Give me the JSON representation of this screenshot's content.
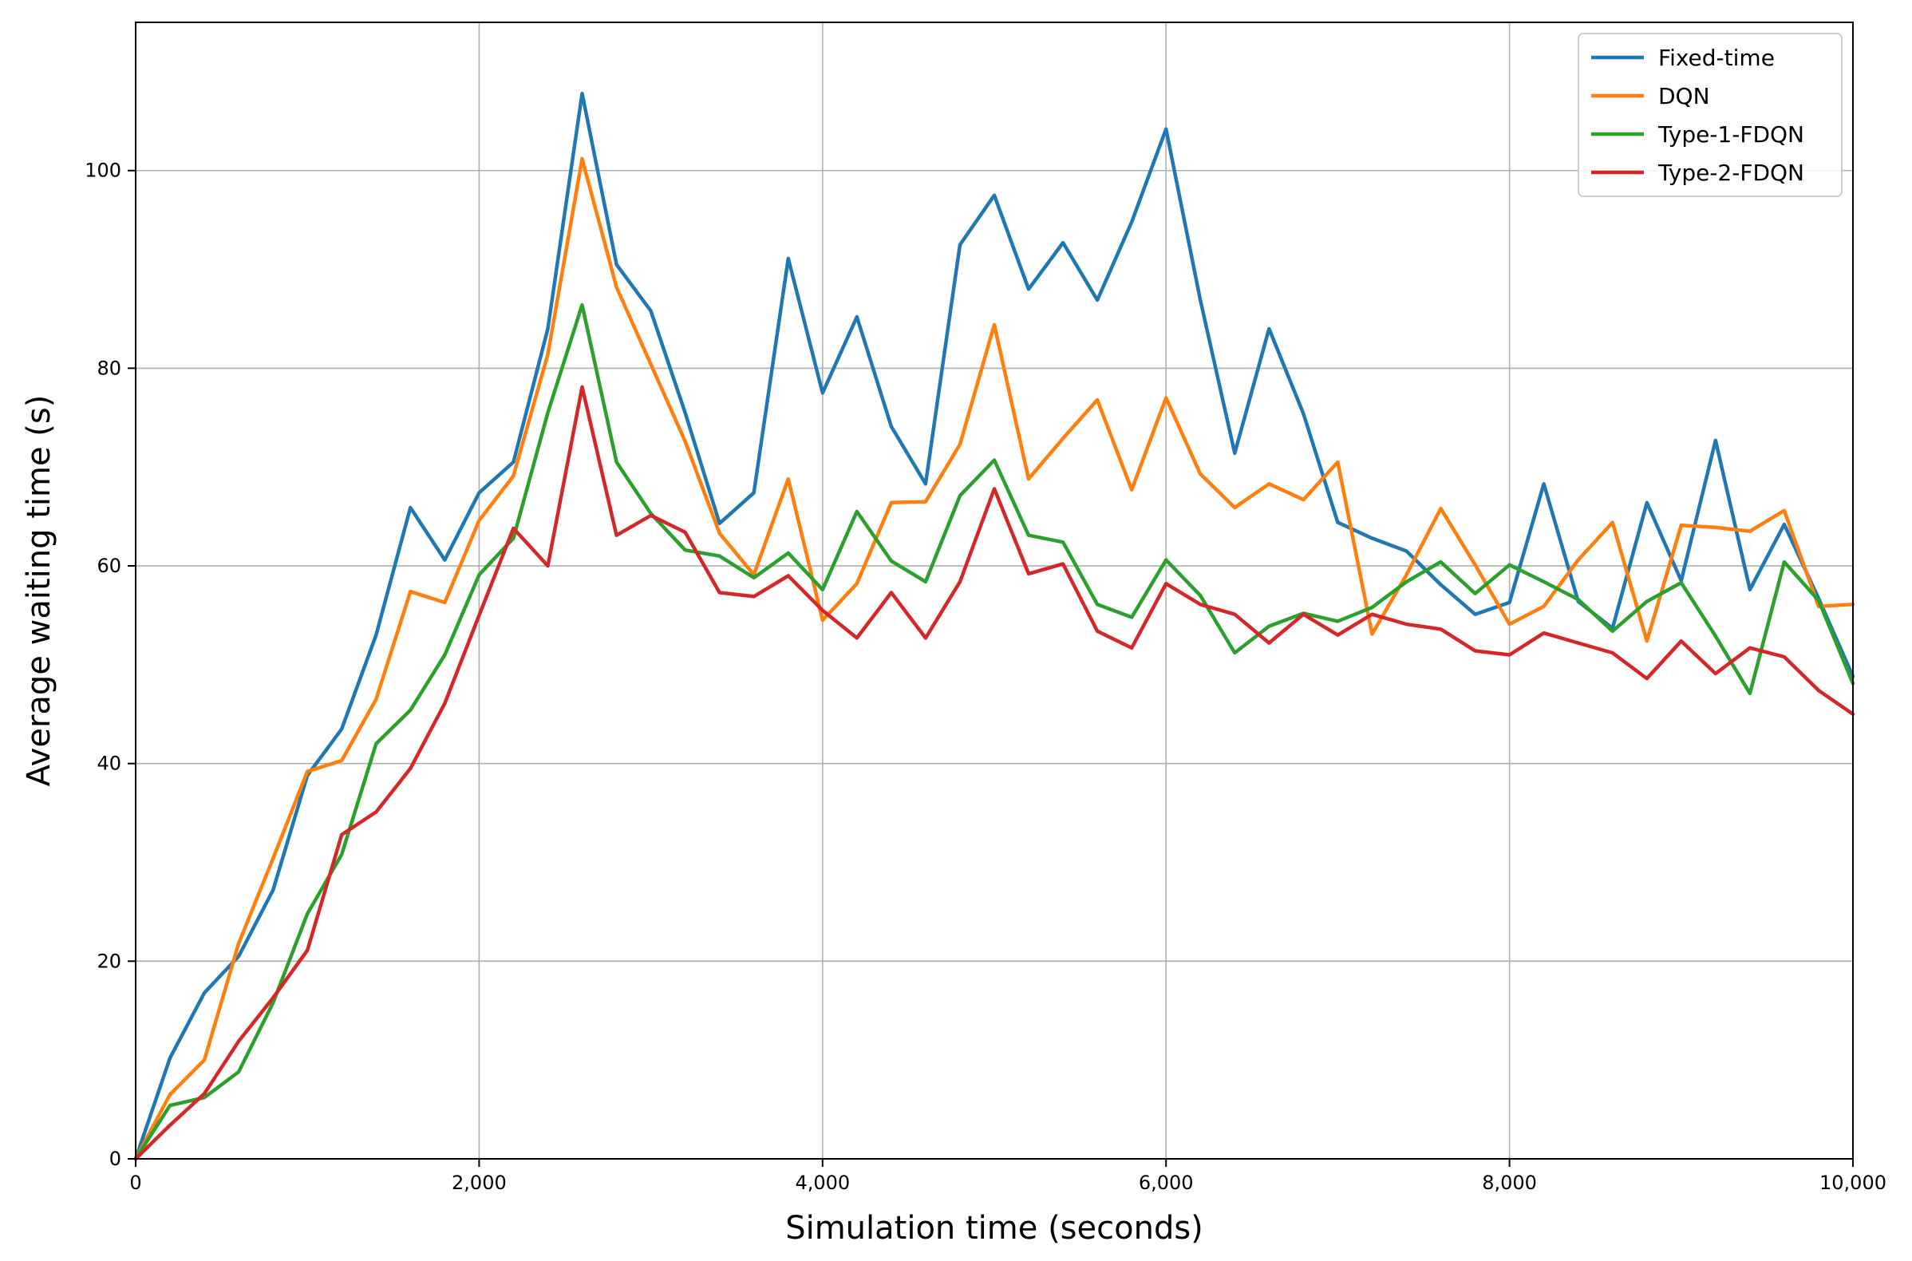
{
  "chart_data": {
    "type": "line",
    "title": "",
    "xlabel": "Simulation time (seconds)",
    "ylabel": "Average waiting time (s)",
    "xlim": [
      0,
      10000
    ],
    "ylim": [
      0,
      115
    ],
    "grid": true,
    "legend_position": "top-right",
    "xticks": [
      0,
      2000,
      4000,
      6000,
      8000,
      10000
    ],
    "xtick_labels": [
      "0",
      "2,000",
      "4,000",
      "6,000",
      "8,000",
      "10,000"
    ],
    "yticks": [
      0,
      20,
      40,
      60,
      80,
      100
    ],
    "ytick_labels": [
      "0",
      "20",
      "40",
      "60",
      "80",
      "100"
    ],
    "x": [
      0,
      200,
      400,
      600,
      800,
      1000,
      1200,
      1400,
      1600,
      1800,
      2000,
      2200,
      2400,
      2600,
      2800,
      3000,
      3200,
      3400,
      3600,
      3800,
      4000,
      4200,
      4400,
      4600,
      4800,
      5000,
      5200,
      5400,
      5600,
      5800,
      6000,
      6200,
      6400,
      6600,
      6800,
      7000,
      7200,
      7400,
      7600,
      7800,
      8000,
      8200,
      8400,
      8600,
      8800,
      9000,
      9200,
      9400,
      9600,
      9800,
      10000
    ],
    "series": [
      {
        "name": "Fixed-time",
        "color": "#1f77b4",
        "values": [
          0,
          10.2,
          16.8,
          20.5,
          27.2,
          38.8,
          43.5,
          53,
          65.9,
          60.6,
          67.4,
          70.5,
          84,
          107.8,
          90.5,
          85.8,
          75.5,
          64.3,
          67.4,
          91.1,
          77.5,
          85.2,
          74.1,
          68.3,
          92.5,
          97.5,
          88,
          92.7,
          86.9,
          94.8,
          104.2,
          86.9,
          71.4,
          84,
          75.4,
          64.4,
          62.8,
          61.5,
          58.1,
          55.1,
          56.3,
          68.3,
          56.4,
          53.7,
          66.4,
          58.5,
          72.7,
          57.6,
          64.2,
          56.7,
          48.8
        ]
      },
      {
        "name": "DQN",
        "color": "#ff7f0e",
        "values": [
          0,
          6.5,
          10,
          21.8,
          30.4,
          39.2,
          40.3,
          46.5,
          57.4,
          56.3,
          64.6,
          69.1,
          81.4,
          101.2,
          88.2,
          80.4,
          72.6,
          63.3,
          59.1,
          68.8,
          54.5,
          58.2,
          66.4,
          66.5,
          72.3,
          84.4,
          68.8,
          72.9,
          76.8,
          67.7,
          77,
          69.3,
          65.9,
          68.3,
          66.7,
          70.5,
          53.1,
          59.1,
          65.8,
          60.1,
          54.1,
          55.9,
          60.6,
          64.4,
          52.4,
          64.1,
          63.9,
          63.5,
          65.6,
          55.9,
          56.1
        ]
      },
      {
        "name": "Type-1-FDQN",
        "color": "#2ca02c",
        "values": [
          0,
          5.4,
          6.2,
          8.8,
          15.8,
          24.8,
          30.8,
          42,
          45.4,
          51,
          59.1,
          62.8,
          75.5,
          86.4,
          70.5,
          65.3,
          61.6,
          61,
          58.8,
          61.3,
          57.6,
          65.5,
          60.5,
          58.4,
          67.1,
          70.7,
          63.1,
          62.4,
          56.1,
          54.8,
          60.6,
          57,
          51.2,
          53.9,
          55.2,
          54.4,
          55.8,
          58.4,
          60.4,
          57.2,
          60.1,
          58.4,
          56.6,
          53.4,
          56.4,
          58.3,
          52.9,
          47.1,
          60.4,
          56.5,
          48.1
        ]
      },
      {
        "name": "Type-2-FDQN",
        "color": "#d62728",
        "values": [
          0,
          3.4,
          6.6,
          11.9,
          16.3,
          21.1,
          32.8,
          35.1,
          39.5,
          46.1,
          55,
          63.8,
          60,
          78.1,
          63.1,
          65.1,
          63.4,
          57.3,
          56.9,
          59,
          55.5,
          52.7,
          57.3,
          52.7,
          58.4,
          67.8,
          59.2,
          60.2,
          53.4,
          51.7,
          58.2,
          56.1,
          55.1,
          52.2,
          55.1,
          53,
          55.1,
          54.1,
          53.6,
          51.4,
          51,
          53.2,
          52.2,
          51.2,
          48.6,
          52.4,
          49.1,
          51.7,
          50.8,
          47.4,
          45
        ]
      }
    ]
  }
}
